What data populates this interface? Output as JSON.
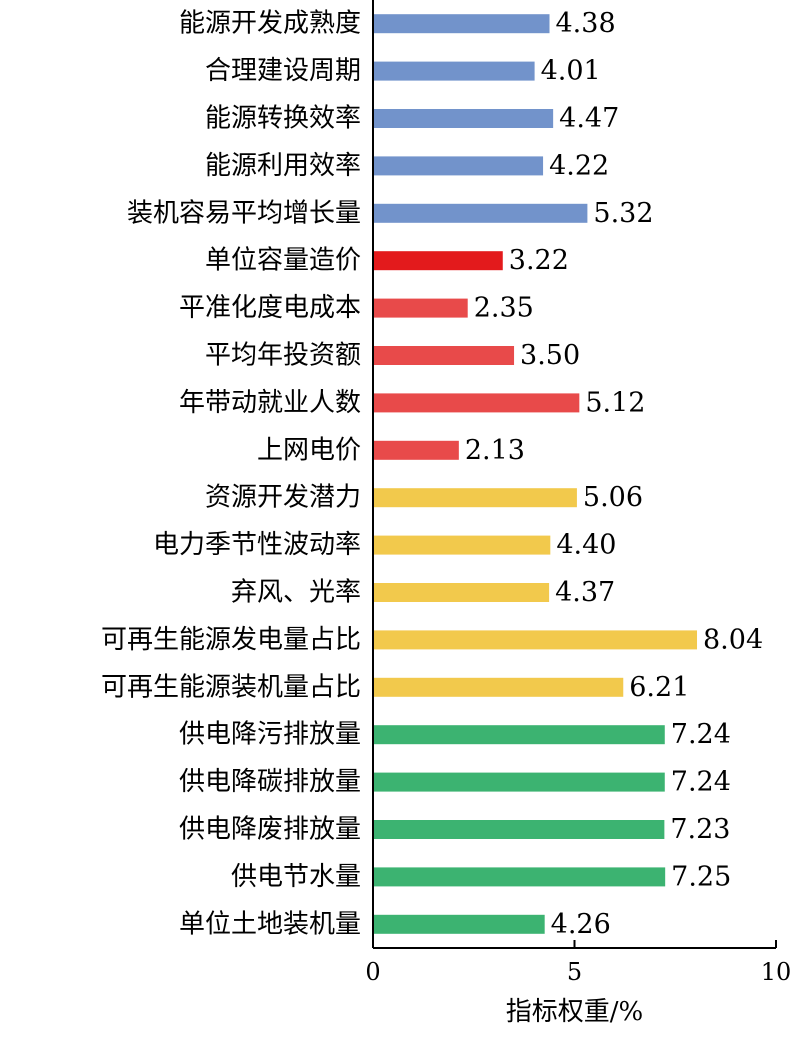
{
  "chart_data": {
    "type": "bar",
    "orientation": "horizontal",
    "xlabel": "指标权重/%",
    "xlim": [
      0,
      10
    ],
    "xticks": [
      0,
      5,
      10
    ],
    "grid": false,
    "legend": "none",
    "categories": [
      "能源开发成熟度",
      "合理建设周期",
      "能源转换效率",
      "能源利用效率",
      "装机容易平均增长量",
      "单位容量造价",
      "平准化度电成本",
      "平均年投资额",
      "年带动就业人数",
      "上网电价",
      "资源开发潜力",
      "电力季节性波动率",
      "弃风、光率",
      "可再生能源发电量占比",
      "可再生能源装机量占比",
      "供电降污排放量",
      "供电降碳排放量",
      "供电降废排放量",
      "供电节水量",
      "单位土地装机量"
    ],
    "values": [
      4.38,
      4.01,
      4.47,
      4.22,
      5.32,
      3.22,
      2.35,
      3.5,
      5.12,
      2.13,
      5.06,
      4.4,
      4.37,
      8.04,
      6.21,
      7.24,
      7.24,
      7.23,
      7.25,
      4.26
    ],
    "value_labels": [
      "4.38",
      "4.01",
      "4.47",
      "4.22",
      "5.32",
      "3.22",
      "2.35",
      "3.50",
      "5.12",
      "2.13",
      "5.06",
      "4.40",
      "4.37",
      "8.04",
      "6.21",
      "7.24",
      "7.24",
      "7.23",
      "7.25",
      "4.26"
    ],
    "bar_colors": [
      "#7293cb",
      "#7293cb",
      "#7293cb",
      "#7293cb",
      "#7293cb",
      "#e31a1c",
      "#e84a4a",
      "#e84a4a",
      "#e84a4a",
      "#e84a4a",
      "#f2c94c",
      "#f2c94c",
      "#f2c94c",
      "#f2c94c",
      "#f2c94c",
      "#3cb371",
      "#3cb371",
      "#3cb371",
      "#3cb371",
      "#3cb371"
    ],
    "axis_color": "#000000"
  }
}
